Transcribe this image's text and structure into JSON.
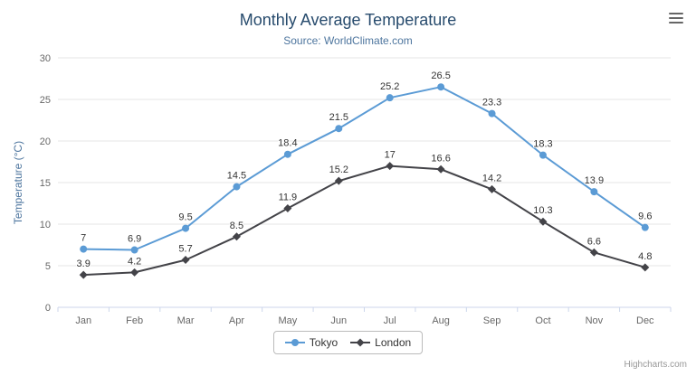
{
  "chart": {
    "credits_label": "Highcharts.com"
  },
  "colors": {
    "title": "#274b6d",
    "subtitle": "#4d759e",
    "y_title": "#4d759e",
    "axis_text": "#666666",
    "grid": "#e6e6e6",
    "axis_line": "#ccd6eb",
    "data_label": "#333333",
    "legend_text": "#333333",
    "legend_border": "#bbbbbb",
    "credits": "#999999",
    "menu_icon": "#666666",
    "tokyo_series": "#5b9bd5",
    "london_series": "#434348"
  },
  "chart_data": {
    "type": "line",
    "title": "Monthly Average Temperature",
    "subtitle": "Source: WorldClimate.com",
    "xlabel": "",
    "ylabel": "Temperature (°C)",
    "ylim": [
      0,
      30
    ],
    "ytick": 5,
    "grid": true,
    "legend_position": "bottom",
    "categories": [
      "Jan",
      "Feb",
      "Mar",
      "Apr",
      "May",
      "Jun",
      "Jul",
      "Aug",
      "Sep",
      "Oct",
      "Nov",
      "Dec"
    ],
    "series": [
      {
        "name": "Tokyo",
        "marker": "circle",
        "color": "#5b9bd5",
        "values": [
          7,
          6.9,
          9.5,
          14.5,
          18.4,
          21.5,
          25.2,
          26.5,
          23.3,
          18.3,
          13.9,
          9.6
        ]
      },
      {
        "name": "London",
        "marker": "diamond",
        "color": "#434348",
        "values": [
          3.9,
          4.2,
          5.7,
          8.5,
          11.9,
          15.2,
          17,
          16.6,
          14.2,
          10.3,
          6.6,
          4.8
        ]
      }
    ]
  }
}
